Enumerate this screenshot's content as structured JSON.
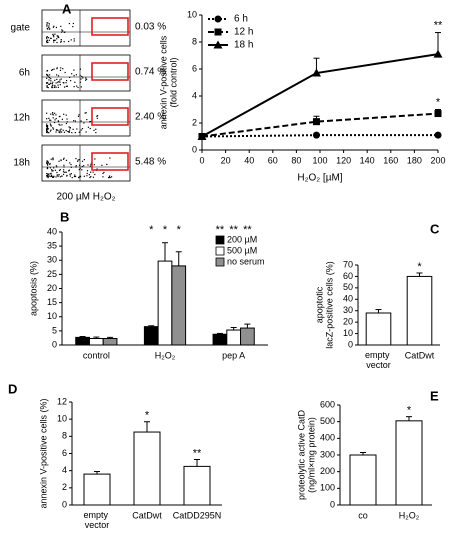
{
  "flow_panel": {
    "rows": [
      {
        "label": "gate",
        "percent": "0.03 %"
      },
      {
        "label": "6h",
        "percent": "0.74 %"
      },
      {
        "label": "12h",
        "percent": "2.40 %"
      },
      {
        "label": "18h",
        "percent": "5.48 %"
      }
    ],
    "caption": "200 µM H₂O₂"
  },
  "chart_data": [
    {
      "type": "line",
      "panel": "A",
      "ylabel": [
        "annexin V-positive cells",
        "(fold control)"
      ],
      "xlabel": "H₂O₂ [µM]",
      "x": [
        0,
        97,
        200
      ],
      "xlim": [
        0,
        200
      ],
      "xticks": [
        0,
        20,
        40,
        60,
        80,
        100,
        120,
        140,
        160,
        180,
        200
      ],
      "ylim": [
        0,
        10
      ],
      "yticks": [
        0,
        2,
        4,
        6,
        8,
        10
      ],
      "legend": "top-left",
      "series": [
        {
          "name": "6 h",
          "color": "#000000",
          "marker": "circle",
          "dash": "dotted",
          "values": [
            1,
            1.1,
            1.1
          ],
          "errors": [
            0.05,
            0.1,
            0.1
          ],
          "annotations": [
            null,
            null,
            null
          ]
        },
        {
          "name": "12 h",
          "color": "#000000",
          "marker": "square",
          "dash": "dashed",
          "values": [
            1,
            2.1,
            2.7
          ],
          "errors": [
            0.05,
            0.4,
            0.3
          ],
          "annotations": [
            null,
            null,
            "*"
          ]
        },
        {
          "name": "18 h",
          "color": "#000000",
          "marker": "triangle",
          "dash": "solid",
          "values": [
            1,
            5.7,
            7.1
          ],
          "errors": [
            0.05,
            1.1,
            1.6
          ],
          "annotations": [
            null,
            null,
            "**"
          ]
        }
      ]
    },
    {
      "type": "bar",
      "panel": "B",
      "ylabel": [
        "apoptosis (%)"
      ],
      "categories": [
        "control",
        "H₂O₂",
        "pep A"
      ],
      "ylim": [
        0,
        40
      ],
      "yticks": [
        0,
        5,
        10,
        15,
        20,
        25,
        30,
        35,
        40
      ],
      "legend": "top-right",
      "series": [
        {
          "name": "200 µM",
          "color": "#000000",
          "values": [
            2.7,
            6.5,
            3.8
          ],
          "errors": [
            0.3,
            0.3,
            0.3
          ],
          "annotations": [
            null,
            "*",
            "**"
          ]
        },
        {
          "name": "500 µM",
          "color": "#ffffff",
          "values": [
            2.3,
            29.7,
            5.3
          ],
          "errors": [
            0.5,
            6.5,
            0.9
          ],
          "annotations": [
            null,
            "*",
            "**"
          ]
        },
        {
          "name": "no serum",
          "color": "#909090",
          "values": [
            2.3,
            28,
            6
          ],
          "errors": [
            0.4,
            5,
            1.4
          ],
          "annotations": [
            null,
            "*",
            "**"
          ]
        }
      ]
    },
    {
      "type": "bar",
      "panel": "C",
      "ylabel": [
        "apoptotic",
        "lacZ-positive cells (%)"
      ],
      "categories": [
        "empty vector",
        "CatDwt"
      ],
      "ylim": [
        0,
        70
      ],
      "yticks": [
        0,
        10,
        20,
        30,
        40,
        50,
        60,
        70
      ],
      "series": [
        {
          "color": "#ffffff",
          "values": [
            28,
            60
          ],
          "errors": [
            3,
            3
          ],
          "annotations": [
            null,
            "*"
          ]
        }
      ]
    },
    {
      "type": "bar",
      "panel": "D",
      "ylabel": [
        "annexin V-positive cells (%)"
      ],
      "categories": [
        "empty vector",
        "CatDwt",
        "CatDD295N"
      ],
      "ylim": [
        0,
        12
      ],
      "yticks": [
        0,
        2,
        4,
        6,
        8,
        10,
        12
      ],
      "series": [
        {
          "color": "#ffffff",
          "values": [
            3.6,
            8.5,
            4.5
          ],
          "errors": [
            0.3,
            1.2,
            0.8
          ],
          "annotations": [
            null,
            "*",
            "**"
          ]
        }
      ]
    },
    {
      "type": "bar",
      "panel": "E",
      "ylabel": [
        "proteolytic active CatD",
        "(ng/ml×mg protein)"
      ],
      "categories": [
        "co",
        "H₂O₂"
      ],
      "ylim": [
        0,
        600
      ],
      "yticks": [
        0,
        100,
        200,
        300,
        400,
        500,
        600
      ],
      "series": [
        {
          "color": "#ffffff",
          "values": [
            300,
            505
          ],
          "errors": [
            15,
            25
          ],
          "annotations": [
            null,
            "*"
          ]
        }
      ]
    }
  ]
}
